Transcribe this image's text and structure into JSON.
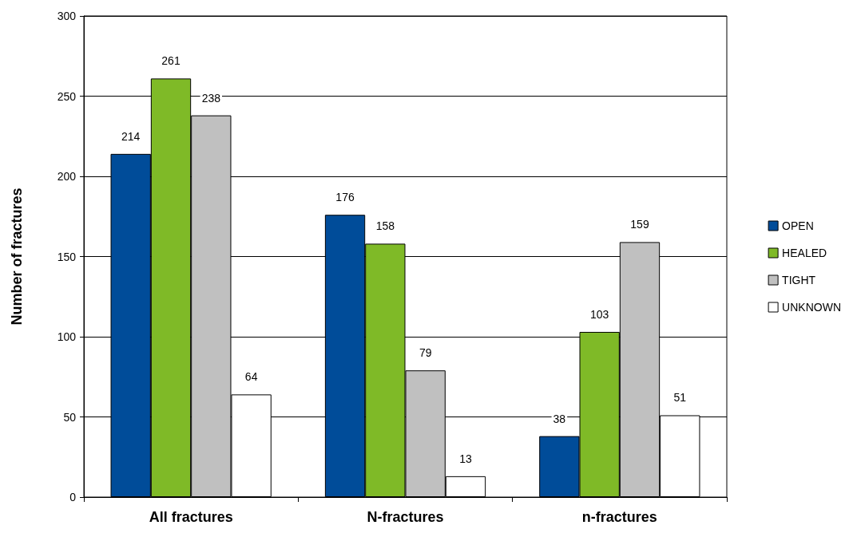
{
  "chart_data": {
    "type": "bar",
    "ylabel": "Number of fractures",
    "categories": [
      "All fractures",
      "N-fractures",
      "n-fractures"
    ],
    "series": [
      {
        "name": "OPEN",
        "color": "#004c99",
        "values": [
          214,
          176,
          38
        ]
      },
      {
        "name": "HEALED",
        "color": "#7fba27",
        "values": [
          261,
          158,
          103
        ]
      },
      {
        "name": "TIGHT",
        "color": "#c0c0c0",
        "values": [
          238,
          79,
          159
        ]
      },
      {
        "name": "UNKNOWN",
        "color": "#ffffff",
        "values": [
          64,
          13,
          51
        ]
      }
    ],
    "ylim": [
      0,
      300
    ],
    "yticks": [
      0,
      50,
      100,
      150,
      200,
      250,
      300
    ],
    "grid": "y",
    "legend": "right",
    "data_labels": true
  }
}
